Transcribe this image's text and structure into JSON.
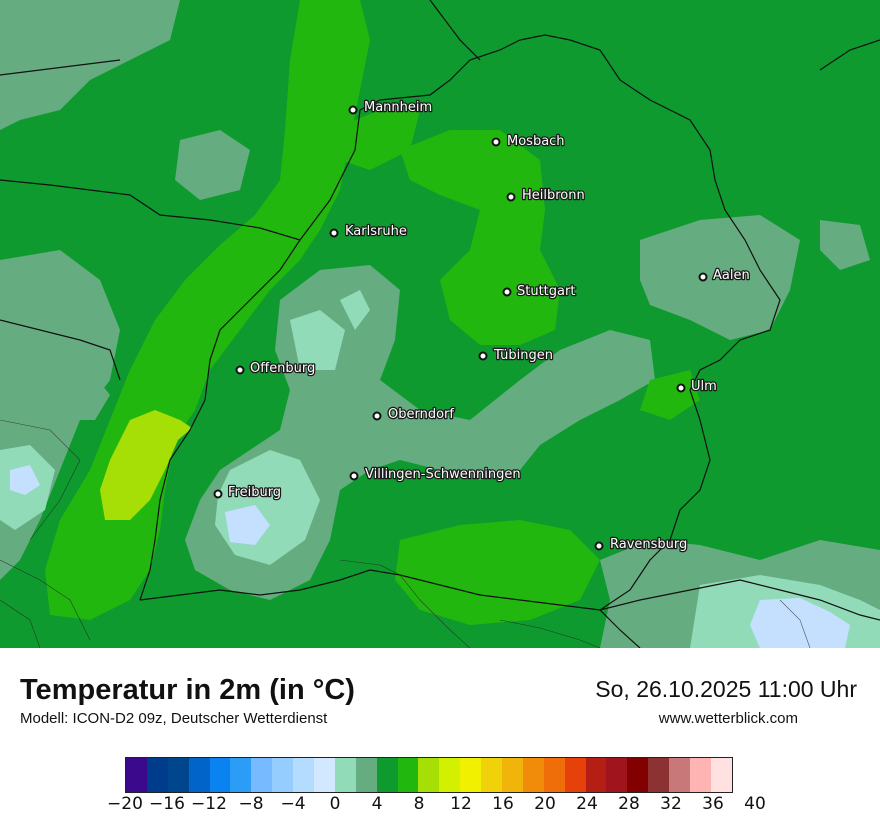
{
  "map": {
    "cities": [
      {
        "name": "Mannheim"
      },
      {
        "name": "Mosbach"
      },
      {
        "name": "Heilbronn"
      },
      {
        "name": "Karlsruhe"
      },
      {
        "name": "Aalen"
      },
      {
        "name": "Stuttgart"
      },
      {
        "name": "Tübingen"
      },
      {
        "name": "Offenburg"
      },
      {
        "name": "Ulm"
      },
      {
        "name": "Oberndorf"
      },
      {
        "name": "Villingen-Schwenningen"
      },
      {
        "name": "Freiburg"
      },
      {
        "name": "Ravensburg"
      }
    ],
    "colors": {
      "base_green": "#0e9a2e",
      "light_green": "#21b70f",
      "teal": "#65ad80",
      "mint": "#91dbb9",
      "pale_blue": "#c5e0ff",
      "lime": "#a6df06",
      "border": "#111111"
    }
  },
  "footer": {
    "title": "Temperatur in 2m (in °C)",
    "subtitle": "Modell: ICON-D2 09z, Deutscher Wetterdienst",
    "datetime": "So, 26.10.2025 11:00 Uhr",
    "website": "www.wetterblick.com"
  },
  "legend": {
    "colors": [
      "#3b0a8c",
      "#003c8c",
      "#00468c",
      "#0064c8",
      "#0a82f0",
      "#2c9df7",
      "#78baff",
      "#96cdff",
      "#b4dcff",
      "#d2e8ff",
      "#91dbb9",
      "#65ad80",
      "#0e9a2e",
      "#21b70f",
      "#a6df06",
      "#d2f000",
      "#f0f000",
      "#f0d20a",
      "#f0b40a",
      "#f08c0a",
      "#f06e0a",
      "#e6410a",
      "#b41e14",
      "#a0141e",
      "#820000",
      "#8c3232",
      "#c87878",
      "#ffb4b4",
      "#ffe1e1"
    ],
    "ticks": [
      "−20",
      "−16",
      "−12",
      "−8",
      "−4",
      "0",
      "4",
      "8",
      "12",
      "16",
      "20",
      "24",
      "28",
      "32",
      "36",
      "40"
    ]
  }
}
